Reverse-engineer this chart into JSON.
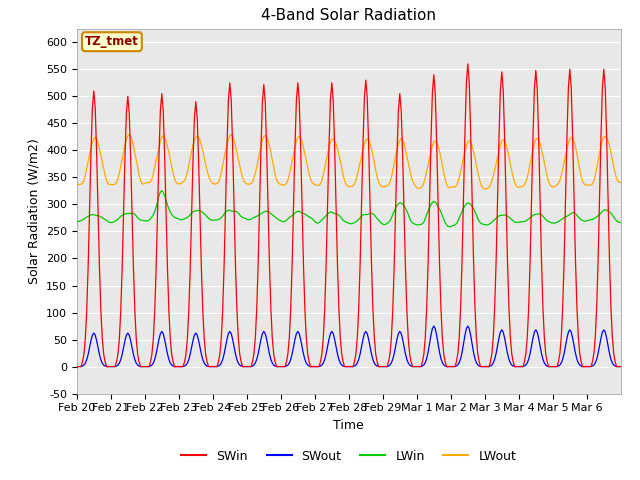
{
  "title": "4-Band Solar Radiation",
  "xlabel": "Time",
  "ylabel": "Solar Radiation (W/m2)",
  "ylim": [
    -50,
    625
  ],
  "xlim": [
    0,
    384
  ],
  "plot_bg_color": "#e8e8e8",
  "grid_color": "white",
  "line_colors": {
    "SWin": "#ff0000",
    "SWout": "#0000ff",
    "LWin": "#00cc00",
    "LWout": "#ffaa00"
  },
  "annotation_text": "TZ_tmet",
  "annotation_bg": "#ffffcc",
  "annotation_border": "#cc8800",
  "tick_labels": [
    "Feb 20",
    "Feb 21",
    "Feb 22",
    "Feb 23",
    "Feb 24",
    "Feb 25",
    "Feb 26",
    "Feb 27",
    "Feb 28",
    "Feb 29",
    "Mar 1",
    "Mar 2",
    "Mar 3",
    "Mar 4",
    "Mar 5",
    "Mar 6"
  ],
  "tick_positions": [
    0,
    24,
    48,
    72,
    96,
    120,
    144,
    168,
    192,
    216,
    240,
    264,
    288,
    312,
    336,
    360
  ],
  "n_hours": 385,
  "SWin_peaks": [
    510,
    500,
    505,
    490,
    525,
    522,
    525,
    525,
    530,
    505,
    540,
    560,
    545,
    548,
    550
  ],
  "SWout_peaks": [
    62,
    62,
    65,
    62,
    65,
    65,
    65,
    65,
    65,
    65,
    75,
    75,
    68,
    68,
    68
  ],
  "LWin_base": 265,
  "LWout_night": 335,
  "LWout_day_peak": 430,
  "title_fontsize": 11,
  "axis_label_fontsize": 9,
  "tick_fontsize": 8
}
